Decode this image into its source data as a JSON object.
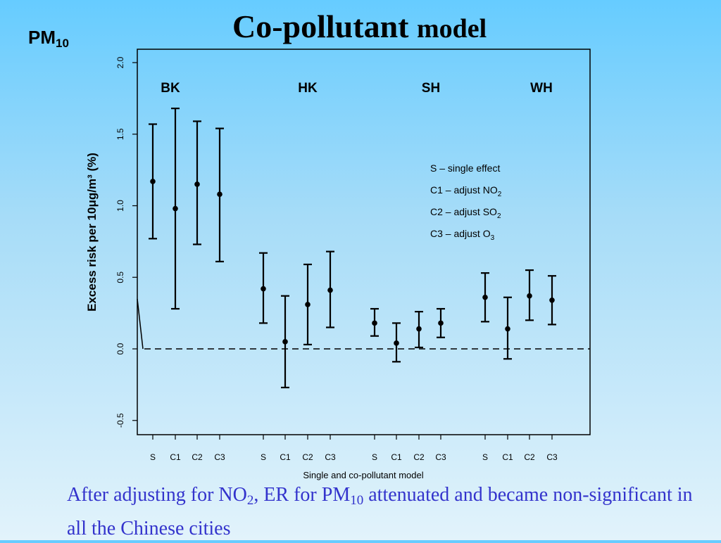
{
  "slide": {
    "title_main": "Co-pollutant",
    "title_rest": "model",
    "pm_label": "PM",
    "pm_sub": "10",
    "caption": {
      "part1": "After adjusting for NO",
      "sub1": "2",
      "part2": ", ER for PM",
      "sub2": "10",
      "part3": " attenuated and became non-significant in all the Chinese cities"
    }
  },
  "chart_data": {
    "type": "scatter",
    "xlabel": "Single and co-pollutant model",
    "ylabel": "Excess risk per 10μg/m³ (%)",
    "ylim": [
      -0.6,
      2.1
    ],
    "yticks": [
      -0.5,
      0.0,
      0.5,
      1.0,
      1.5,
      2.0
    ],
    "ytick_labels": [
      "-0.5",
      "0.0",
      "0.5",
      "1.0",
      "1.5",
      "2.0"
    ],
    "reference_line": 0,
    "legend_placement": "right-middle",
    "legend": [
      {
        "text": "S – single effect"
      },
      {
        "text": "C1 – adjust NO",
        "sub": "2"
      },
      {
        "text": "C2 – adjust SO",
        "sub": "2"
      },
      {
        "text": "C3 – adjust O",
        "sub": "3"
      }
    ],
    "groups": [
      {
        "name": "BK",
        "points": [
          {
            "label": "S",
            "est": 1.17,
            "lo": 0.77,
            "hi": 1.57
          },
          {
            "label": "C1",
            "est": 0.98,
            "lo": 0.28,
            "hi": 1.68
          },
          {
            "label": "C2",
            "est": 1.15,
            "lo": 0.73,
            "hi": 1.59
          },
          {
            "label": "C3",
            "est": 1.08,
            "lo": 0.61,
            "hi": 1.54
          }
        ]
      },
      {
        "name": "HK",
        "points": [
          {
            "label": "S",
            "est": 0.42,
            "lo": 0.18,
            "hi": 0.67
          },
          {
            "label": "C1",
            "est": 0.05,
            "lo": -0.27,
            "hi": 0.37
          },
          {
            "label": "C2",
            "est": 0.31,
            "lo": 0.03,
            "hi": 0.59
          },
          {
            "label": "C3",
            "est": 0.41,
            "lo": 0.15,
            "hi": 0.68
          }
        ]
      },
      {
        "name": "SH",
        "points": [
          {
            "label": "S",
            "est": 0.18,
            "lo": 0.09,
            "hi": 0.28
          },
          {
            "label": "C1",
            "est": 0.04,
            "lo": -0.09,
            "hi": 0.18
          },
          {
            "label": "C2",
            "est": 0.14,
            "lo": 0.01,
            "hi": 0.26
          },
          {
            "label": "C3",
            "est": 0.18,
            "lo": 0.08,
            "hi": 0.28
          }
        ]
      },
      {
        "name": "WH",
        "points": [
          {
            "label": "S",
            "est": 0.36,
            "lo": 0.19,
            "hi": 0.53
          },
          {
            "label": "C1",
            "est": 0.14,
            "lo": -0.07,
            "hi": 0.36
          },
          {
            "label": "C2",
            "est": 0.37,
            "lo": 0.2,
            "hi": 0.55
          },
          {
            "label": "C3",
            "est": 0.34,
            "lo": 0.17,
            "hi": 0.51
          }
        ]
      }
    ]
  }
}
